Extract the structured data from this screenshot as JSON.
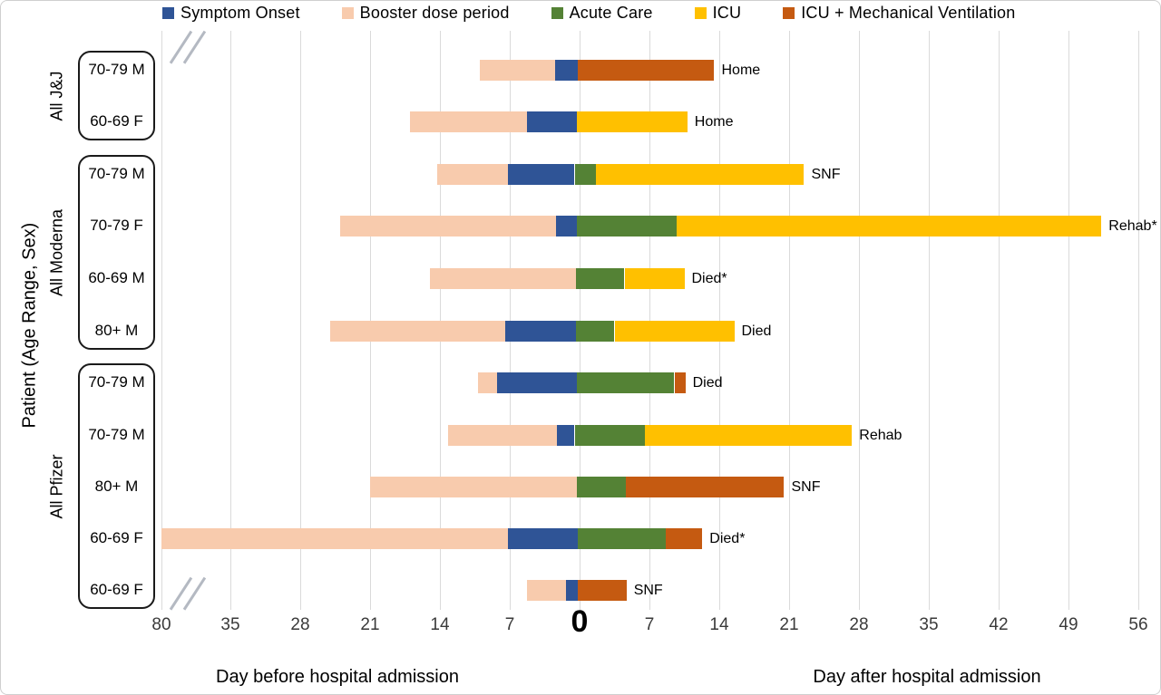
{
  "figure": {
    "y_axis_title": "Patient (Age Range, Sex)",
    "x_axis_title_before": "Day before hospital admission",
    "x_axis_title_after": "Day after hospital admission",
    "zero_label": "0"
  },
  "legend": [
    {
      "key": "symptom",
      "label": "Symptom Onset"
    },
    {
      "key": "booster",
      "label": "Booster dose period"
    },
    {
      "key": "acute",
      "label": "Acute Care"
    },
    {
      "key": "icu",
      "label": "ICU"
    },
    {
      "key": "icu_mv",
      "label": "ICU + Mechanical Ventilation"
    }
  ],
  "colors": {
    "symptom": "#2F5496",
    "booster": "#F8CBAD",
    "acute": "#548235",
    "icu": "#FFC000",
    "icu_mv": "#C55A11",
    "grid": "#DADADA",
    "axis_break": "#B4B9C2"
  },
  "chart_data": {
    "type": "bar",
    "subtype": "horizontal-stacked-timeline",
    "unit": "days relative to hospital admission (negative = before)",
    "axis": {
      "before_ticks": [
        80,
        35,
        28,
        21,
        14,
        7
      ],
      "zero": 0,
      "after_ticks": [
        7,
        14,
        21,
        28,
        35,
        42,
        49,
        56
      ],
      "axis_break_between": [
        80,
        35
      ],
      "grid": true
    },
    "groups": [
      {
        "label": "All J&J",
        "first_row": 0,
        "last_row": 1
      },
      {
        "label": "All Moderna",
        "first_row": 2,
        "last_row": 5
      },
      {
        "label": "All Pfizer",
        "first_row": 6,
        "last_row": 10
      }
    ],
    "rows": [
      {
        "group": "All J&J",
        "patient": "70-79 M",
        "outcome": "Home",
        "segments": [
          {
            "type": "booster",
            "start": -10,
            "end": -2.5
          },
          {
            "type": "symptom",
            "start": -2.5,
            "end": -0.2
          },
          {
            "type": "icu_mv",
            "start": -0.2,
            "end": 13.5
          }
        ]
      },
      {
        "group": "All J&J",
        "patient": "60-69 F",
        "outcome": "Home",
        "segments": [
          {
            "type": "booster",
            "start": -17,
            "end": -5.3
          },
          {
            "type": "symptom",
            "start": -5.3,
            "end": -0.3
          },
          {
            "type": "icu",
            "start": -0.3,
            "end": 10.8
          }
        ]
      },
      {
        "group": "All Moderna",
        "patient": "70-79 M",
        "outcome": "SNF",
        "segments": [
          {
            "type": "booster",
            "start": -14.3,
            "end": -7.2
          },
          {
            "type": "symptom",
            "start": -7.2,
            "end": -0.5
          },
          {
            "type": "acute",
            "start": -0.5,
            "end": 1.6
          },
          {
            "type": "icu",
            "start": 1.6,
            "end": 22.5
          }
        ]
      },
      {
        "group": "All Moderna",
        "patient": "70-79 F",
        "outcome": "Rehab*",
        "segments": [
          {
            "type": "booster",
            "start": -24,
            "end": -2.4
          },
          {
            "type": "symptom",
            "start": -2.4,
            "end": -0.3
          },
          {
            "type": "acute",
            "start": -0.3,
            "end": 9.7
          },
          {
            "type": "icu",
            "start": 9.7,
            "end": 52.3
          }
        ]
      },
      {
        "group": "All Moderna",
        "patient": "60-69 M",
        "outcome": "Died*",
        "segments": [
          {
            "type": "booster",
            "start": -15,
            "end": -0.4
          },
          {
            "type": "acute",
            "start": -0.4,
            "end": 4.5
          },
          {
            "type": "icu",
            "start": 4.5,
            "end": 10.5
          }
        ]
      },
      {
        "group": "All Moderna",
        "patient": "80+ M",
        "outcome": "Died",
        "segments": [
          {
            "type": "booster",
            "start": -25,
            "end": -7.5
          },
          {
            "type": "symptom",
            "start": -7.5,
            "end": -0.4
          },
          {
            "type": "acute",
            "start": -0.4,
            "end": 3.5
          },
          {
            "type": "icu",
            "start": 3.5,
            "end": 15.5
          }
        ]
      },
      {
        "group": "All Pfizer",
        "patient": "70-79 M",
        "outcome": "Died",
        "segments": [
          {
            "type": "booster",
            "start": -10.2,
            "end": -8.3
          },
          {
            "type": "symptom",
            "start": -8.3,
            "end": -0.3
          },
          {
            "type": "acute",
            "start": -0.3,
            "end": 9.5
          },
          {
            "type": "icu_mv",
            "start": 9.5,
            "end": 10.6
          }
        ]
      },
      {
        "group": "All Pfizer",
        "patient": "70-79 M",
        "outcome": "Rehab",
        "segments": [
          {
            "type": "booster",
            "start": -13.2,
            "end": -2.3
          },
          {
            "type": "symptom",
            "start": -2.3,
            "end": -0.5
          },
          {
            "type": "acute",
            "start": -0.5,
            "end": 6.5
          },
          {
            "type": "icu",
            "start": 6.5,
            "end": 27.3
          }
        ]
      },
      {
        "group": "All Pfizer",
        "patient": "80+ M",
        "outcome": "SNF",
        "segments": [
          {
            "type": "booster",
            "start": -21,
            "end": -0.3
          },
          {
            "type": "acute",
            "start": -0.3,
            "end": 4.6
          },
          {
            "type": "icu_mv",
            "start": 4.6,
            "end": 20.5
          }
        ]
      },
      {
        "group": "All Pfizer",
        "patient": "60-69 F",
        "outcome": "Died*",
        "segments": [
          {
            "type": "booster",
            "start": -80,
            "end": -7.2
          },
          {
            "type": "symptom",
            "start": -7.2,
            "end": -0.2
          },
          {
            "type": "acute",
            "start": -0.2,
            "end": 8.6
          },
          {
            "type": "icu_mv",
            "start": 8.6,
            "end": 12.3
          }
        ]
      },
      {
        "group": "All Pfizer",
        "patient": "60-69 F",
        "outcome": "SNF",
        "segments": [
          {
            "type": "booster",
            "start": -5.3,
            "end": -1.4
          },
          {
            "type": "symptom",
            "start": -1.4,
            "end": -0.2
          },
          {
            "type": "icu_mv",
            "start": -0.2,
            "end": 4.7
          }
        ]
      }
    ]
  }
}
